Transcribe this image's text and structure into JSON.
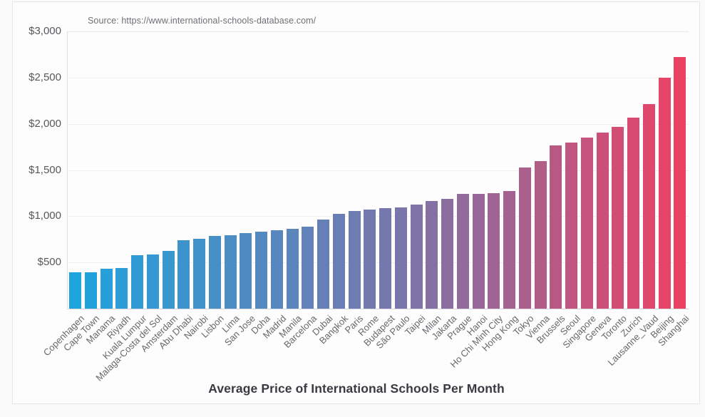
{
  "page": {
    "background": "#fafafa",
    "card_background": "#fdfdfe",
    "card_border": "#e6e6ea"
  },
  "chart_data": {
    "type": "bar",
    "title": "Average Price of International Schools Per Month",
    "source": "Source: https://www.international-schools-database.com/",
    "categories": [
      "Copenhagen",
      "Cape Town",
      "Manama",
      "Riyadh",
      "Kuala Lumpur",
      "Malaga-Costa del Sol",
      "Amsterdam",
      "Abu Dhabi",
      "Nairobi",
      "Lisbon",
      "Lima",
      "San Jose",
      "Doha",
      "Madrid",
      "Manila",
      "Barcelona",
      "Dubai",
      "Bangkok",
      "Paris",
      "Rome",
      "Budapest",
      "São Paulo",
      "Taipei",
      "Milan",
      "Jakarta",
      "Prague",
      "Hanoi",
      "Ho Chi Minh City",
      "Hong Kong",
      "Tokyo",
      "Vienna",
      "Brussels",
      "Seoul",
      "Singapore",
      "Geneva",
      "Toronto",
      "Zurich",
      "Lausanne_Vaud",
      "Beijing",
      "Shanghai"
    ],
    "values": [
      390,
      392,
      432,
      438,
      580,
      585,
      622,
      738,
      755,
      785,
      795,
      815,
      830,
      845,
      860,
      885,
      962,
      1025,
      1055,
      1072,
      1088,
      1098,
      1125,
      1165,
      1185,
      1240,
      1245,
      1252,
      1272,
      1530,
      1600,
      1768,
      1800,
      1852,
      1902,
      1970,
      2068,
      2210,
      2498,
      2725
    ],
    "xlabel": "",
    "ylabel": "",
    "ylim": [
      0,
      3000
    ],
    "ytick_values": [
      500,
      1000,
      1500,
      2000,
      2500,
      3000
    ],
    "ytick_labels": [
      "$500",
      "$1,000",
      "$1,500",
      "$2,000",
      "$2,500",
      "$3,000"
    ],
    "grid": true,
    "legend": false,
    "bar_gradient": {
      "stops": [
        {
          "pos": 0.0,
          "color": "#1EA4DE"
        },
        {
          "pos": 0.56,
          "color": "#7E73A8"
        },
        {
          "pos": 1.0,
          "color": "#EB4264"
        }
      ]
    },
    "style": {
      "grid_color": "#f0f0f3",
      "axis_color": "#d9d9dd",
      "tick_label_color": "#58585c",
      "category_label_color": "#67686c",
      "title_color": "#3a3a41",
      "source_color": "#6f7074"
    }
  }
}
